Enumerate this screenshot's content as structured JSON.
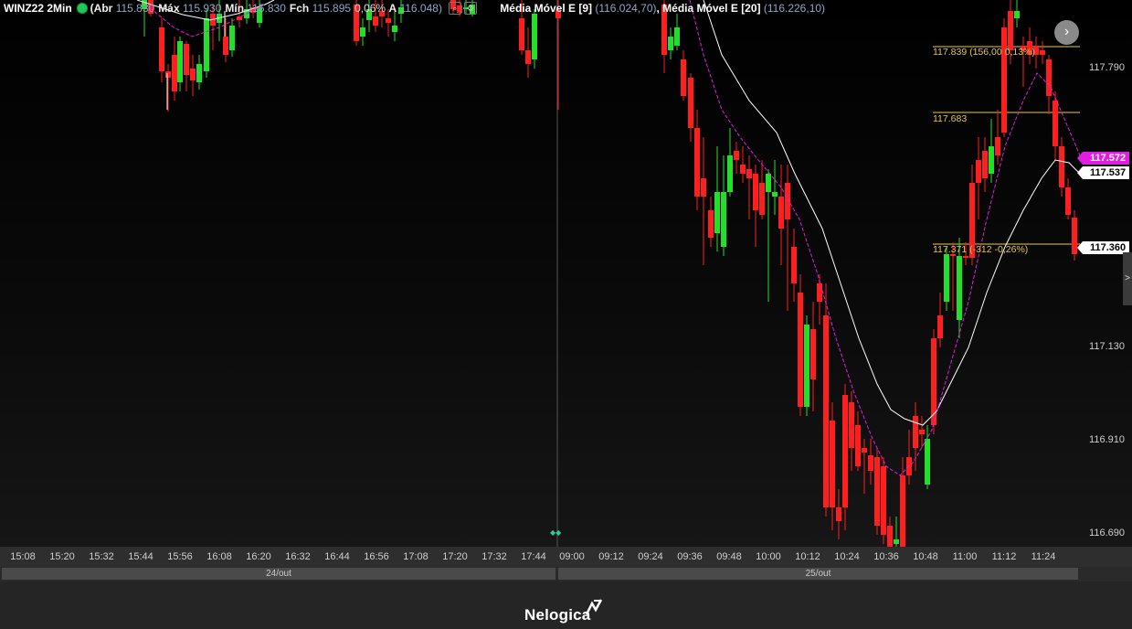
{
  "header": {
    "symbol": "WINZ22 2Min",
    "open_label": "(Abr",
    "open": "115.830",
    "high_label": "Máx",
    "high": "115.930",
    "low_label": "Mín",
    "low": "115.830",
    "close_label": "Fch",
    "close": "115.895",
    "change": "0,06%",
    "a_label": "A",
    "a_value": "116.048)",
    "btn1": "⌕",
    "btn2": "⚙",
    "ma9_label": "Média Móvel E [9]",
    "ma9_value": "(116.024,70)",
    "ma20_label": ", Média Móvel E [20]",
    "ma20_value": "(116.226,10)"
  },
  "price_axis": [
    "117.790",
    "117.130",
    "116.910",
    "116.690"
  ],
  "price_tags": {
    "ma9": "117.572",
    "ma20": "117.537",
    "last": "117.360"
  },
  "hlines": {
    "top": "117.839 (156,00 0,13%)",
    "mid": "117.683",
    "bottom": "117.371 (-312 -0,26%)"
  },
  "nav_button": "›",
  "side_tab": ">",
  "time_axis": [
    "15:08",
    "15:20",
    "15:32",
    "15:44",
    "15:56",
    "16:08",
    "16:20",
    "16:32",
    "16:44",
    "16:56",
    "17:08",
    "17:20",
    "17:32",
    "17:44",
    "09:00",
    "09:12",
    "09:24",
    "09:36",
    "09:48",
    "10:00",
    "10:12",
    "10:24",
    "10:36",
    "10:48",
    "11:00",
    "11:12",
    "11:24"
  ],
  "dates": [
    "24/out",
    "25/out"
  ],
  "marker": "◆◆",
  "brand": "Nelogica",
  "colors": {
    "up": "#22e02a",
    "down": "#ff1f1f",
    "ma9": "#e11de1",
    "ma20": "#ffffff",
    "hline": "#e6c64a"
  }
}
